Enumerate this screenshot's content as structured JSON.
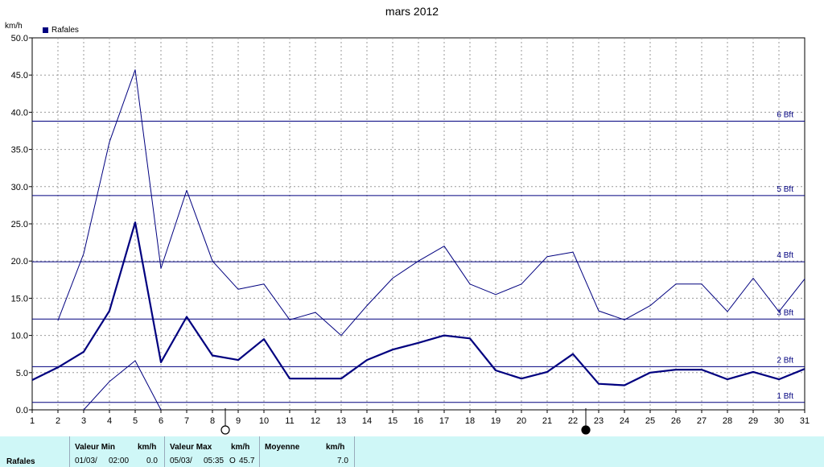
{
  "title": "mars 2012",
  "unit": "km/h",
  "legend": "Rafales",
  "colors": {
    "series": "#00007f",
    "grid": "#9a9a9a",
    "bft": "#00007f",
    "stats_bg": "#cff7f7"
  },
  "icons": [
    "full-moon-icon",
    "new-moon-icon"
  ],
  "chart_data": {
    "type": "line",
    "title": "mars 2012",
    "ylabel": "km/h",
    "ylim": [
      0,
      50
    ],
    "xlim": [
      1,
      31
    ],
    "y_ticks": [
      "0.0",
      "5.0",
      "10.0",
      "15.0",
      "20.0",
      "25.0",
      "30.0",
      "35.0",
      "40.0",
      "45.0",
      "50.0"
    ],
    "x": [
      1,
      2,
      3,
      4,
      5,
      6,
      7,
      8,
      9,
      10,
      11,
      12,
      13,
      14,
      15,
      16,
      17,
      18,
      19,
      20,
      21,
      22,
      23,
      24,
      25,
      26,
      27,
      28,
      29,
      30,
      31
    ],
    "series": [
      {
        "name": "Rafales",
        "role": "mean",
        "values": [
          4.0,
          5.7,
          7.8,
          13.3,
          25.2,
          6.4,
          12.5,
          7.3,
          6.7,
          9.5,
          4.2,
          4.2,
          4.2,
          6.7,
          8.1,
          9.0,
          10.0,
          9.6,
          5.3,
          4.2,
          5.1,
          7.5,
          3.5,
          3.3,
          5.0,
          5.4,
          5.4,
          4.1,
          5.1,
          4.1,
          5.5
        ]
      },
      {
        "role": "max",
        "values": [
          null,
          12.0,
          21.0,
          36.0,
          45.7,
          19.0,
          29.5,
          20.0,
          16.2,
          16.9,
          12.1,
          13.1,
          10.0,
          14.0,
          17.7,
          20.0,
          22.0,
          16.9,
          15.5,
          16.9,
          20.6,
          21.2,
          13.3,
          12.1,
          14.0,
          16.9,
          16.9,
          13.2,
          17.7,
          13.2,
          17.6
        ]
      },
      {
        "role": "min",
        "values": [
          null,
          null,
          0.0,
          3.8,
          6.6,
          0.0,
          null,
          null,
          null,
          null,
          null,
          null,
          null,
          null,
          null,
          null,
          null,
          null,
          null,
          null,
          null,
          null,
          null,
          null,
          null,
          null,
          null,
          null,
          null,
          null,
          null
        ]
      }
    ],
    "beaufort": [
      {
        "label": "1 Bft",
        "value": 1.0
      },
      {
        "label": "2 Bft",
        "value": 5.8
      },
      {
        "label": "3 Bft",
        "value": 12.2
      },
      {
        "label": "4 Bft",
        "value": 19.9
      },
      {
        "label": "5 Bft",
        "value": 28.8
      },
      {
        "label": "6 Bft",
        "value": 38.8
      }
    ],
    "moon_phases": [
      {
        "day": 8.5,
        "phase": "full"
      },
      {
        "day": 22.5,
        "phase": "new"
      }
    ],
    "grid": true,
    "legend_position": "top-left"
  },
  "stats": {
    "label": "Rafales",
    "min_header": "Valeur Min",
    "min_unit": "km/h",
    "min_date": "01/03/",
    "min_time": "02:00",
    "min_value": "0.0",
    "max_header": "Valeur Max",
    "max_unit": "km/h",
    "max_date": "05/03/",
    "max_time": "05:35",
    "max_dir": "O",
    "max_value": "45.7",
    "avg_header": "Moyenne",
    "avg_unit": "km/h",
    "avg_value": "7.0"
  }
}
